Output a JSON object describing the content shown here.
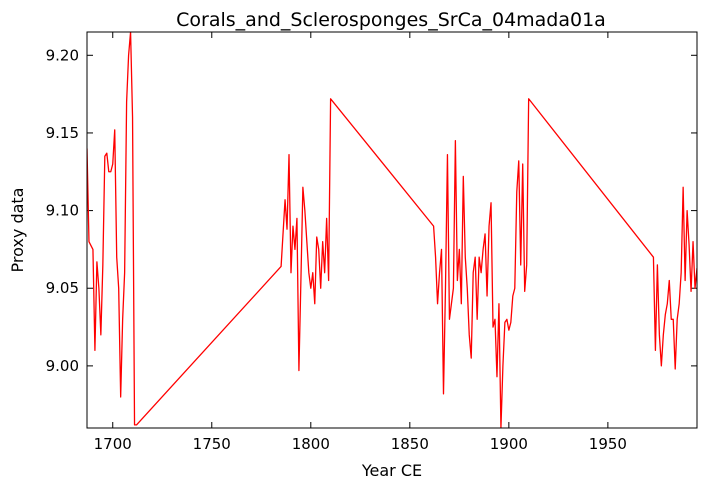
{
  "chart_data": {
    "type": "line",
    "title": "Corals_and_Sclerosponges_SrCa_04mada01a",
    "xlabel": "Year CE",
    "ylabel": "Proxy data",
    "xlim": [
      1687,
      1995
    ],
    "ylim": [
      8.96,
      9.215
    ],
    "xticks": [
      1700,
      1750,
      1800,
      1850,
      1900,
      1950
    ],
    "yticks": [
      9.0,
      9.05,
      9.1,
      9.15,
      9.2
    ],
    "ytick_labels": [
      "9.00",
      "9.05",
      "9.10",
      "9.15",
      "9.20"
    ],
    "grid": false,
    "series": [
      {
        "color": "#ff0000",
        "x": [
          1687,
          1688,
          1690,
          1691,
          1692,
          1693,
          1694,
          1695,
          1696,
          1697,
          1698,
          1699,
          1700,
          1701,
          1702,
          1703,
          1704,
          1705,
          1706,
          1707,
          1708,
          1709,
          1710,
          1711,
          1712,
          1785,
          1787,
          1788,
          1789,
          1790,
          1791,
          1792,
          1793,
          1794,
          1795,
          1796,
          1797,
          1798,
          1799,
          1800,
          1801,
          1802,
          1803,
          1804,
          1805,
          1806,
          1807,
          1808,
          1809,
          1810,
          1862,
          1863,
          1864,
          1865,
          1866,
          1867,
          1868,
          1869,
          1870,
          1871,
          1872,
          1873,
          1874,
          1875,
          1876,
          1877,
          1878,
          1879,
          1880,
          1881,
          1882,
          1883,
          1884,
          1885,
          1886,
          1887,
          1888,
          1889,
          1890,
          1891,
          1892,
          1893,
          1894,
          1895,
          1896,
          1897,
          1898,
          1899,
          1900,
          1901,
          1902,
          1903,
          1904,
          1905,
          1906,
          1907,
          1908,
          1909,
          1910,
          1973,
          1974,
          1975,
          1976,
          1977,
          1978,
          1979,
          1980,
          1981,
          1982,
          1983,
          1984,
          1985,
          1986,
          1987,
          1988,
          1989,
          1990,
          1991,
          1992,
          1993,
          1994,
          1995
        ],
        "y": [
          9.14,
          9.08,
          9.075,
          9.01,
          9.067,
          9.05,
          9.02,
          9.065,
          9.135,
          9.137,
          9.125,
          9.125,
          9.13,
          9.152,
          9.07,
          9.05,
          8.98,
          9.03,
          9.06,
          9.17,
          9.2,
          9.215,
          9.16,
          8.962,
          8.962,
          9.064,
          9.107,
          9.088,
          9.136,
          9.06,
          9.09,
          9.075,
          9.095,
          8.997,
          9.055,
          9.115,
          9.1,
          9.08,
          9.06,
          9.05,
          9.06,
          9.04,
          9.083,
          9.075,
          9.05,
          9.08,
          9.06,
          9.095,
          9.055,
          9.172,
          9.09,
          9.07,
          9.04,
          9.06,
          9.075,
          8.982,
          9.05,
          9.136,
          9.03,
          9.04,
          9.05,
          9.145,
          9.055,
          9.075,
          9.04,
          9.122,
          9.07,
          9.05,
          9.02,
          9.005,
          9.06,
          9.07,
          9.03,
          9.07,
          9.06,
          9.075,
          9.085,
          9.045,
          9.09,
          9.105,
          9.025,
          9.03,
          8.993,
          9.04,
          8.96,
          9.0,
          9.028,
          9.03,
          9.023,
          9.028,
          9.045,
          9.05,
          9.112,
          9.132,
          9.065,
          9.13,
          9.048,
          9.065,
          9.172,
          9.07,
          9.01,
          9.065,
          9.02,
          9.0,
          9.02,
          9.033,
          9.04,
          9.055,
          9.03,
          9.03,
          8.998,
          9.03,
          9.04,
          9.06,
          9.115,
          9.055,
          9.1,
          9.078,
          9.048,
          9.08,
          9.05,
          9.063
        ]
      }
    ]
  }
}
